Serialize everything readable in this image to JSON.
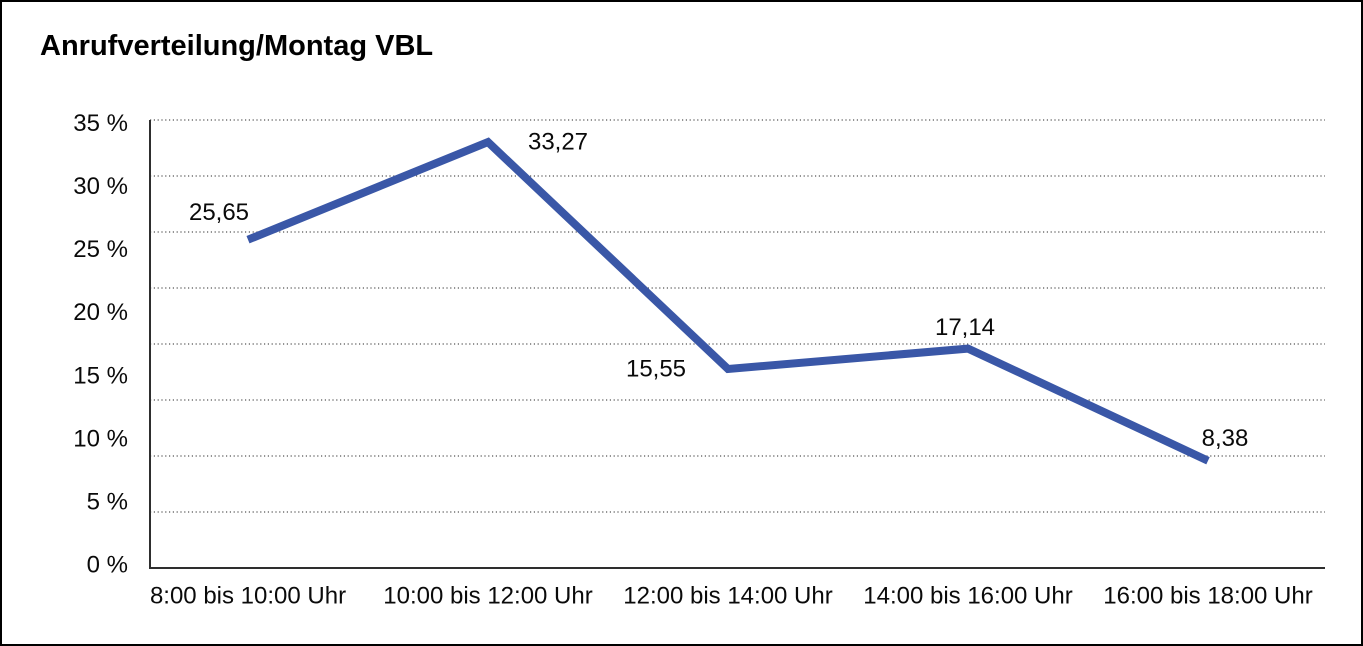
{
  "title": "Anrufverteilung/Montag VBL",
  "chart_data": {
    "type": "line",
    "title": "Anrufverteilung/Montag VBL",
    "categories": [
      "8:00 bis 10:00 Uhr",
      "10:00 bis 12:00 Uhr",
      "12:00 bis 14:00 Uhr",
      "14:00 bis 16:00 Uhr",
      "16:00 bis 18:00 Uhr"
    ],
    "values": [
      25.65,
      33.27,
      15.55,
      17.14,
      8.38
    ],
    "point_labels": [
      "25,65",
      "33,27",
      "15,55",
      "17,14",
      "8,38"
    ],
    "xlabel": "",
    "ylabel": "",
    "ylim": [
      0,
      35
    ],
    "y_tick_labels": [
      "35 %",
      "30 %",
      "25 %",
      "20 %",
      "15 %",
      "10 %",
      "5 %",
      "0 %"
    ],
    "grid": "horizontal-dotted",
    "legend_position": "none",
    "line_color": "#3A57A7",
    "text_color": "#0a0a0a",
    "axis_color": "#2e2e2e",
    "grid_color": "#555555",
    "background_color": "#ffffff",
    "border_color": "#000000"
  }
}
